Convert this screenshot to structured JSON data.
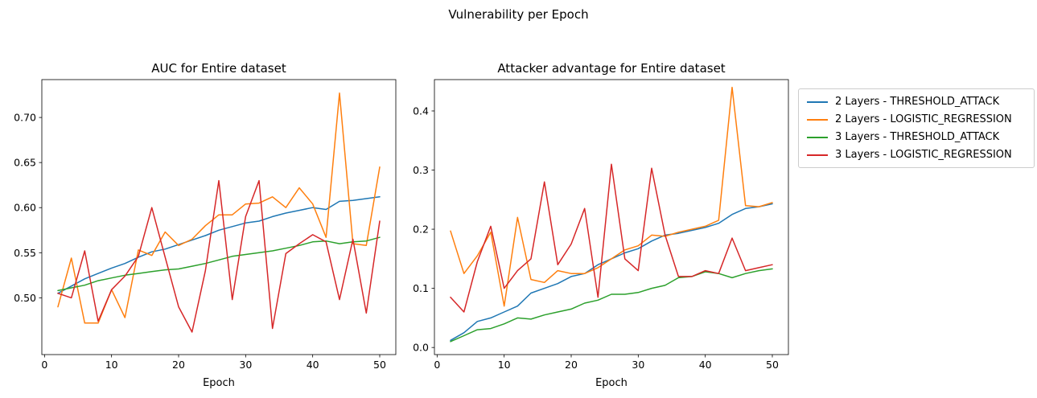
{
  "figure": {
    "suptitle": "Vulnerability per Epoch",
    "background": "#ffffff"
  },
  "legend": {
    "items": [
      {
        "label": "2 Layers - THRESHOLD_ATTACK",
        "color": "#1f77b4"
      },
      {
        "label": "2 Layers - LOGISTIC_REGRESSION",
        "color": "#ff7f0e"
      },
      {
        "label": "3 Layers - THRESHOLD_ATTACK",
        "color": "#2ca02c"
      },
      {
        "label": "3 Layers - LOGISTIC_REGRESSION",
        "color": "#d62728"
      }
    ]
  },
  "chart_data": [
    {
      "type": "line",
      "title": "AUC for Entire dataset",
      "xlabel": "Epoch",
      "ylabel": "",
      "x": [
        2,
        4,
        6,
        8,
        10,
        12,
        14,
        16,
        18,
        20,
        22,
        24,
        26,
        28,
        30,
        32,
        34,
        36,
        38,
        40,
        42,
        44,
        46,
        48,
        50
      ],
      "xlim": [
        -0.4,
        52.4
      ],
      "ylim": [
        0.437,
        0.742
      ],
      "xticks": [
        0,
        10,
        20,
        30,
        40,
        50
      ],
      "xtick_labels": [
        "0",
        "10",
        "20",
        "30",
        "40",
        "50"
      ],
      "yticks": [
        0.5,
        0.55,
        0.6,
        0.65,
        0.7
      ],
      "ytick_labels": [
        "0.50",
        "0.55",
        "0.60",
        "0.65",
        "0.70"
      ],
      "grid": false,
      "series": [
        {
          "name": "2 Layers - THRESHOLD_ATTACK",
          "color": "#1f77b4",
          "values": [
            0.505,
            0.513,
            0.521,
            0.527,
            0.533,
            0.538,
            0.545,
            0.551,
            0.554,
            0.559,
            0.564,
            0.569,
            0.575,
            0.579,
            0.583,
            0.585,
            0.59,
            0.594,
            0.597,
            0.6,
            0.598,
            0.607,
            0.608,
            0.61,
            0.612
          ]
        },
        {
          "name": "2 Layers - LOGISTIC_REGRESSION",
          "color": "#ff7f0e",
          "values": [
            0.49,
            0.544,
            0.472,
            0.472,
            0.509,
            0.478,
            0.553,
            0.547,
            0.573,
            0.558,
            0.565,
            0.58,
            0.592,
            0.592,
            0.604,
            0.605,
            0.612,
            0.6,
            0.622,
            0.604,
            0.567,
            0.727,
            0.56,
            0.558,
            0.645
          ]
        },
        {
          "name": "3 Layers - THRESHOLD_ATTACK",
          "color": "#2ca02c",
          "values": [
            0.508,
            0.511,
            0.514,
            0.519,
            0.522,
            0.525,
            0.527,
            0.529,
            0.531,
            0.532,
            0.535,
            0.538,
            0.542,
            0.546,
            0.548,
            0.55,
            0.552,
            0.555,
            0.558,
            0.562,
            0.563,
            0.56,
            0.562,
            0.563,
            0.567
          ]
        },
        {
          "name": "3 Layers - LOGISTIC_REGRESSION",
          "color": "#d62728",
          "values": [
            0.505,
            0.5,
            0.552,
            0.474,
            0.509,
            0.524,
            0.546,
            0.6,
            0.545,
            0.49,
            0.462,
            0.53,
            0.63,
            0.498,
            0.59,
            0.63,
            0.466,
            0.549,
            0.56,
            0.57,
            0.562,
            0.498,
            0.565,
            0.483,
            0.585
          ]
        }
      ]
    },
    {
      "type": "line",
      "title": "Attacker advantage for Entire dataset",
      "xlabel": "Epoch",
      "ylabel": "",
      "x": [
        2,
        4,
        6,
        8,
        10,
        12,
        14,
        16,
        18,
        20,
        22,
        24,
        26,
        28,
        30,
        32,
        34,
        36,
        38,
        40,
        42,
        44,
        46,
        48,
        50
      ],
      "xlim": [
        -0.4,
        52.4
      ],
      "ylim": [
        -0.012,
        0.453
      ],
      "xticks": [
        0,
        10,
        20,
        30,
        40,
        50
      ],
      "xtick_labels": [
        "0",
        "10",
        "20",
        "30",
        "40",
        "50"
      ],
      "yticks": [
        0.0,
        0.1,
        0.2,
        0.3,
        0.4
      ],
      "ytick_labels": [
        "0.0",
        "0.1",
        "0.2",
        "0.3",
        "0.4"
      ],
      "grid": false,
      "series": [
        {
          "name": "2 Layers - THRESHOLD_ATTACK",
          "color": "#1f77b4",
          "values": [
            0.012,
            0.025,
            0.044,
            0.05,
            0.06,
            0.07,
            0.092,
            0.1,
            0.108,
            0.12,
            0.125,
            0.14,
            0.15,
            0.16,
            0.167,
            0.18,
            0.19,
            0.193,
            0.198,
            0.203,
            0.21,
            0.225,
            0.235,
            0.238,
            0.243
          ]
        },
        {
          "name": "2 Layers - LOGISTIC_REGRESSION",
          "color": "#ff7f0e",
          "values": [
            0.197,
            0.125,
            0.155,
            0.195,
            0.07,
            0.22,
            0.115,
            0.11,
            0.13,
            0.125,
            0.125,
            0.135,
            0.15,
            0.165,
            0.172,
            0.19,
            0.188,
            0.195,
            0.2,
            0.205,
            0.215,
            0.44,
            0.24,
            0.238,
            0.245
          ]
        },
        {
          "name": "3 Layers - THRESHOLD_ATTACK",
          "color": "#2ca02c",
          "values": [
            0.01,
            0.02,
            0.03,
            0.032,
            0.04,
            0.05,
            0.048,
            0.055,
            0.06,
            0.065,
            0.075,
            0.08,
            0.09,
            0.09,
            0.093,
            0.1,
            0.105,
            0.118,
            0.12,
            0.128,
            0.125,
            0.118,
            0.125,
            0.13,
            0.133
          ]
        },
        {
          "name": "3 Layers - LOGISTIC_REGRESSION",
          "color": "#d62728",
          "values": [
            0.085,
            0.06,
            0.145,
            0.205,
            0.1,
            0.13,
            0.15,
            0.28,
            0.14,
            0.175,
            0.235,
            0.085,
            0.31,
            0.15,
            0.13,
            0.303,
            0.19,
            0.12,
            0.12,
            0.13,
            0.125,
            0.185,
            0.13,
            0.135,
            0.14
          ]
        }
      ]
    }
  ]
}
